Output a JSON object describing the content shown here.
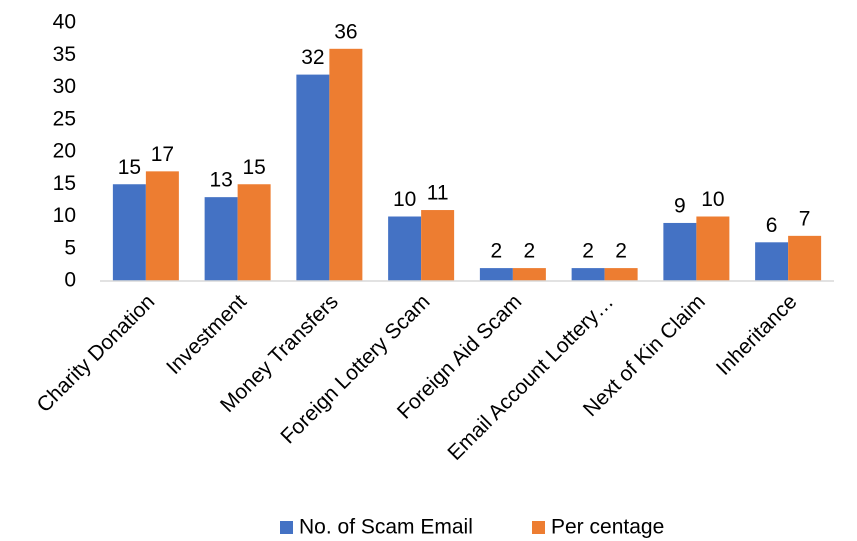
{
  "chart_data": {
    "type": "bar",
    "categories": [
      "Charity Donation",
      "Investment",
      "Money Transfers",
      "Foreign Lottery Scam",
      "Foreign Aid Scam",
      "Email Account Lottery…",
      "Next of Kin Claim",
      "Inheritance"
    ],
    "series": [
      {
        "name": "No. of Scam Email",
        "color": "#4472c4",
        "values": [
          15,
          13,
          32,
          10,
          2,
          2,
          9,
          6
        ]
      },
      {
        "name": "Per centage",
        "color": "#ed7d31",
        "values": [
          17,
          15,
          36,
          11,
          2,
          2,
          10,
          7
        ]
      }
    ],
    "ylim": [
      0,
      40
    ],
    "yticks": [
      0,
      5,
      10,
      15,
      20,
      25,
      30,
      35,
      40
    ],
    "grid": false,
    "legend": "bottom"
  }
}
